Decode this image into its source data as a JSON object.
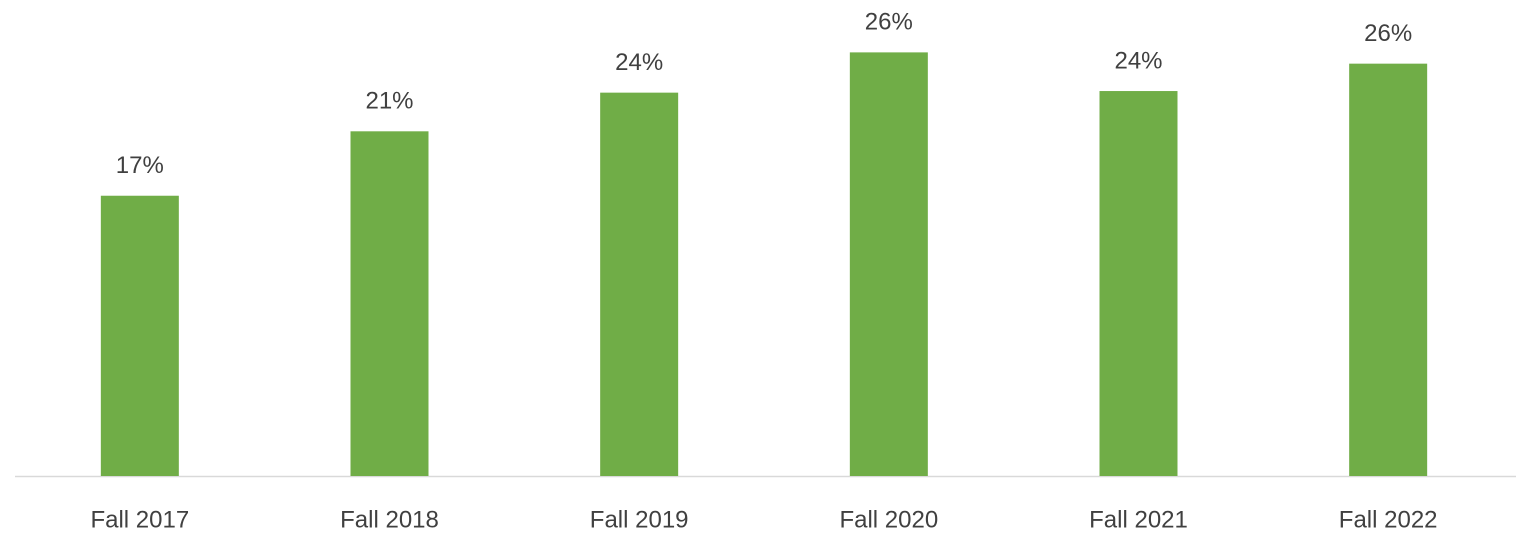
{
  "chart_data": {
    "type": "bar",
    "categories": [
      "Fall 2017",
      "Fall 2018",
      "Fall 2019",
      "Fall 2020",
      "Fall 2021",
      "Fall 2022"
    ],
    "values": [
      17.4,
      21.4,
      23.8,
      26.3,
      23.9,
      25.6
    ],
    "value_labels": [
      "17%",
      "21%",
      "24%",
      "26%",
      "24%",
      "26%"
    ],
    "color": "#70ad47",
    "ylim": [
      0,
      28
    ]
  }
}
